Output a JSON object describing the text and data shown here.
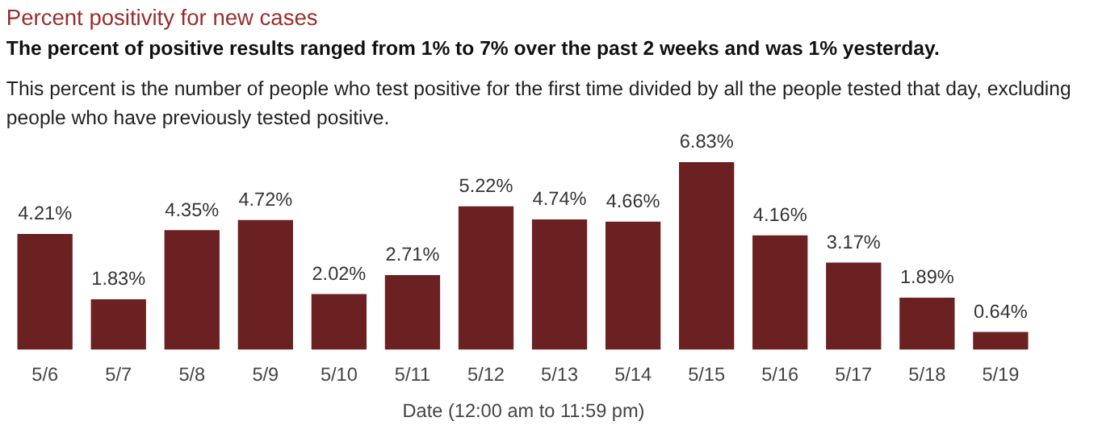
{
  "chart_data": {
    "type": "bar",
    "title": "Percent positivity for new cases",
    "subtitle": "The percent of positive results ranged from 1% to 7% over the past 2 weeks and was 1% yesterday.",
    "annotations": [
      "This percent is the number of people who test positive for the first time divided by all the people tested that day, excluding people who have previously tested positive."
    ],
    "xlabel": "Date (12:00 am to 11:59 pm)",
    "categories": [
      "5/6",
      "5/7",
      "5/8",
      "5/9",
      "5/10",
      "5/11",
      "5/12",
      "5/13",
      "5/14",
      "5/15",
      "5/16",
      "5/17",
      "5/18",
      "5/19"
    ],
    "values": [
      4.21,
      1.83,
      4.35,
      4.72,
      2.02,
      2.71,
      5.22,
      4.74,
      4.66,
      6.83,
      4.16,
      3.17,
      1.89,
      0.64
    ],
    "value_labels": [
      "4.21%",
      "1.83%",
      "4.35%",
      "4.72%",
      "2.02%",
      "2.71%",
      "5.22%",
      "4.74%",
      "4.66%",
      "6.83%",
      "4.16%",
      "3.17%",
      "1.89%",
      "0.64%"
    ],
    "color": "#6b2022",
    "grid": false
  }
}
